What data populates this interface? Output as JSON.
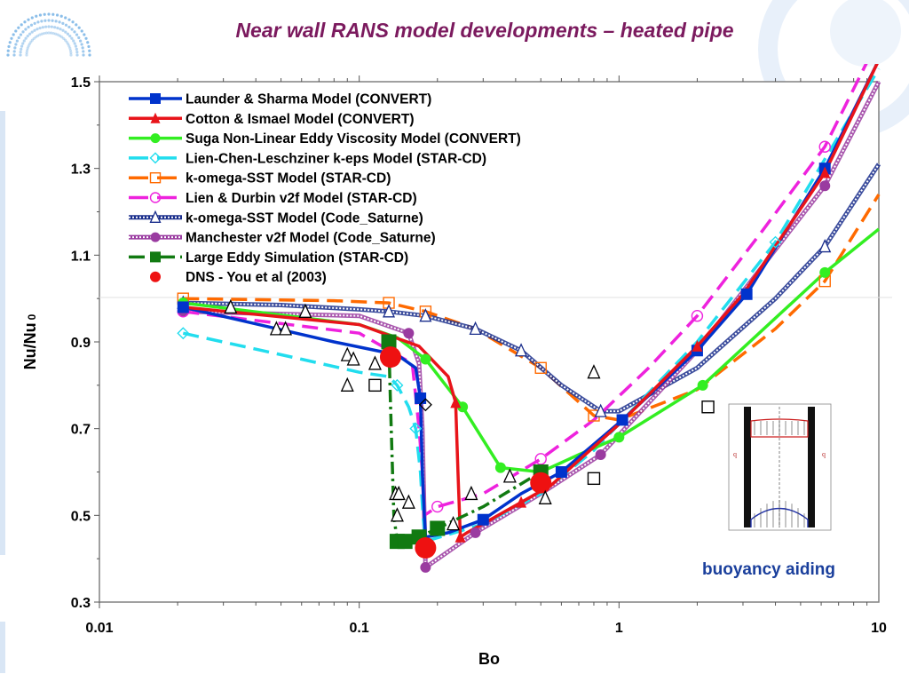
{
  "chart_data": {
    "type": "line",
    "title": "Near wall RANS model developments – heated pipe",
    "xlabel": "Bo",
    "ylabel_main": "Nu/Nu",
    "ylabel_sub": "0",
    "xscale": "log",
    "xlim": [
      0.01,
      10
    ],
    "ylim": [
      0.3,
      1.5
    ],
    "xticks": [
      {
        "value": 0.01,
        "label": "0.01"
      },
      {
        "value": 0.1,
        "label": "0.1"
      },
      {
        "value": 1,
        "label": "1"
      },
      {
        "value": 10,
        "label": "10"
      }
    ],
    "yticks": [
      {
        "value": 0.3,
        "label": "0.3"
      },
      {
        "value": 0.5,
        "label": "0.5"
      },
      {
        "value": 0.7,
        "label": "0.7"
      },
      {
        "value": 0.9,
        "label": "0.9"
      },
      {
        "value": 1.1,
        "label": "1.1"
      },
      {
        "value": 1.3,
        "label": "1.3"
      },
      {
        "value": 1.5,
        "label": "1.5"
      }
    ],
    "legend_position": "top-left",
    "annotation": "buoyancy aiding",
    "series": [
      {
        "name": "Launder & Sharma Model (CONVERT)",
        "color": "#0033cc",
        "dash": "solid",
        "marker": "square-filled",
        "x": [
          0.021,
          0.08,
          0.14,
          0.165,
          0.172,
          0.175,
          0.178,
          0.18,
          0.22,
          0.3,
          0.42,
          0.6,
          1.03,
          2.0,
          3.1,
          6.2,
          10
        ],
        "y": [
          0.98,
          0.9,
          0.87,
          0.84,
          0.77,
          0.6,
          0.5,
          0.45,
          0.46,
          0.49,
          0.55,
          0.6,
          0.72,
          0.88,
          1.01,
          1.3,
          1.55
        ],
        "marker_idx": [
          0,
          4,
          9,
          11,
          12,
          13,
          14,
          15
        ]
      },
      {
        "name": "Cotton & Ismael Model (CONVERT)",
        "color": "#e8141a",
        "dash": "solid",
        "marker": "triangle-filled",
        "x": [
          0.021,
          0.1,
          0.17,
          0.22,
          0.235,
          0.24,
          0.245,
          0.26,
          0.32,
          0.42,
          0.55,
          1.0,
          2.0,
          3.0,
          6.2,
          10
        ],
        "y": [
          0.98,
          0.94,
          0.89,
          0.82,
          0.76,
          0.6,
          0.45,
          0.46,
          0.49,
          0.53,
          0.57,
          0.71,
          0.89,
          1.01,
          1.29,
          1.55
        ],
        "marker_idx": [
          4,
          6,
          9,
          12,
          14
        ]
      },
      {
        "name": "Suga Non-Linear Eddy Viscosity Model (CONVERT)",
        "color": "#33ee22",
        "dash": "solid",
        "marker": "circle-filled",
        "x": [
          0.021,
          0.1,
          0.14,
          0.18,
          0.25,
          0.35,
          0.5,
          0.7,
          1.0,
          2.1,
          6.2,
          10
        ],
        "y": [
          0.99,
          0.94,
          0.91,
          0.86,
          0.75,
          0.61,
          0.6,
          0.64,
          0.68,
          0.8,
          1.06,
          1.16
        ],
        "marker_idx": [
          0,
          3,
          4,
          5,
          8,
          9,
          10
        ]
      },
      {
        "name": "Lien-Chen-Leschziner k-eps Model (STAR-CD)",
        "color": "#22ddee",
        "dash": "dashed",
        "marker": "diamond-open",
        "x": [
          0.021,
          0.06,
          0.1,
          0.13,
          0.14,
          0.155,
          0.165,
          0.172,
          0.176,
          0.18,
          0.3,
          0.5,
          0.8,
          2.0,
          4.0,
          10
        ],
        "y": [
          0.92,
          0.86,
          0.83,
          0.82,
          0.8,
          0.75,
          0.7,
          0.6,
          0.5,
          0.44,
          0.48,
          0.55,
          0.65,
          0.9,
          1.13,
          1.53
        ],
        "marker_idx": [
          0,
          4,
          6,
          14
        ]
      },
      {
        "name": "k-omega-SST Model (STAR-CD)",
        "color": "#ff6a00",
        "dash": "dashed",
        "marker": "square-open",
        "x": [
          0.021,
          0.08,
          0.13,
          0.18,
          0.28,
          0.5,
          0.8,
          1.0,
          2.0,
          4.0,
          6.2,
          10
        ],
        "y": [
          1.0,
          0.995,
          0.99,
          0.97,
          0.93,
          0.84,
          0.73,
          0.72,
          0.79,
          0.93,
          1.04,
          1.24
        ],
        "marker_idx": [
          0,
          2,
          3,
          5,
          6,
          10
        ]
      },
      {
        "name": "Lien & Durbin v2f Model (STAR-CD)",
        "color": "#ee22dd",
        "dash": "dashed",
        "marker": "circle-open",
        "x": [
          0.021,
          0.1,
          0.16,
          0.17,
          0.175,
          0.178,
          0.2,
          0.3,
          0.5,
          0.8,
          1.3,
          2.0,
          3.5,
          6.2,
          10
        ],
        "y": [
          0.97,
          0.92,
          0.85,
          0.7,
          0.6,
          0.5,
          0.52,
          0.55,
          0.63,
          0.72,
          0.84,
          0.96,
          1.15,
          1.35,
          1.6
        ],
        "marker_idx": [
          0,
          6,
          8,
          11,
          13
        ]
      },
      {
        "name": "k-omega-SST Model (Code_Saturne)",
        "color": "#1a2e8c",
        "dash": "hatched",
        "marker": "triangle-open",
        "x": [
          0.021,
          0.05,
          0.1,
          0.13,
          0.18,
          0.28,
          0.42,
          0.6,
          0.85,
          1.0,
          2.0,
          4.0,
          6.2,
          10
        ],
        "y": [
          0.99,
          0.985,
          0.975,
          0.97,
          0.96,
          0.93,
          0.88,
          0.8,
          0.74,
          0.74,
          0.84,
          1.0,
          1.12,
          1.31
        ],
        "marker_idx": [
          0,
          3,
          4,
          5,
          6,
          8,
          12
        ]
      },
      {
        "name": "Manchester v2f Model (Code_Saturne)",
        "color": "#9a3ba0",
        "dash": "hatched",
        "marker": "circle-filled",
        "x": [
          0.021,
          0.1,
          0.155,
          0.17,
          0.175,
          0.178,
          0.18,
          0.28,
          0.5,
          0.85,
          2.0,
          6.2,
          10
        ],
        "y": [
          0.97,
          0.96,
          0.92,
          0.85,
          0.7,
          0.5,
          0.38,
          0.46,
          0.55,
          0.64,
          0.88,
          1.26,
          1.5
        ],
        "marker_idx": [
          0,
          2,
          6,
          7,
          9,
          10,
          11
        ]
      },
      {
        "name": "Large Eddy Simulation (STAR-CD)",
        "color": "#117a11",
        "dash": "dashdot",
        "marker": "square-filled",
        "x": [
          0.13,
          0.132,
          0.134,
          0.136,
          0.14,
          0.15,
          0.17,
          0.2,
          0.3,
          0.5
        ],
        "y": [
          0.9,
          0.75,
          0.62,
          0.5,
          0.44,
          0.44,
          0.45,
          0.47,
          0.52,
          0.6
        ],
        "marker_idx": [
          0,
          4,
          5,
          6,
          7,
          9
        ]
      },
      {
        "name": "DNS - You et al (2003)",
        "color": "#ee1111",
        "dash": "none",
        "marker": "circle-filled-large",
        "x": [
          0.132,
          0.18,
          0.5
        ],
        "y": [
          0.865,
          0.425,
          0.575
        ],
        "marker_idx": [
          0,
          1,
          2
        ]
      }
    ],
    "experiment_points": [
      {
        "marker": "triangle-open",
        "x": [
          0.032,
          0.048,
          0.052,
          0.062,
          0.09,
          0.095,
          0.115,
          0.138,
          0.14,
          0.142,
          0.155,
          0.23,
          0.27,
          0.38,
          0.52,
          0.8
        ],
        "y": [
          0.98,
          0.93,
          0.93,
          0.97,
          0.87,
          0.86,
          0.85,
          0.55,
          0.5,
          0.55,
          0.53,
          0.48,
          0.55,
          0.59,
          0.54,
          0.83
        ]
      },
      {
        "marker": "triangle-open",
        "x": [
          0.09
        ],
        "y": [
          0.8
        ]
      },
      {
        "marker": "square-open",
        "x": [
          0.115,
          0.8,
          2.2
        ],
        "y": [
          0.8,
          0.585,
          0.75
        ]
      },
      {
        "marker": "diamond-open",
        "x": [
          0.18
        ],
        "y": [
          0.755
        ]
      }
    ]
  }
}
